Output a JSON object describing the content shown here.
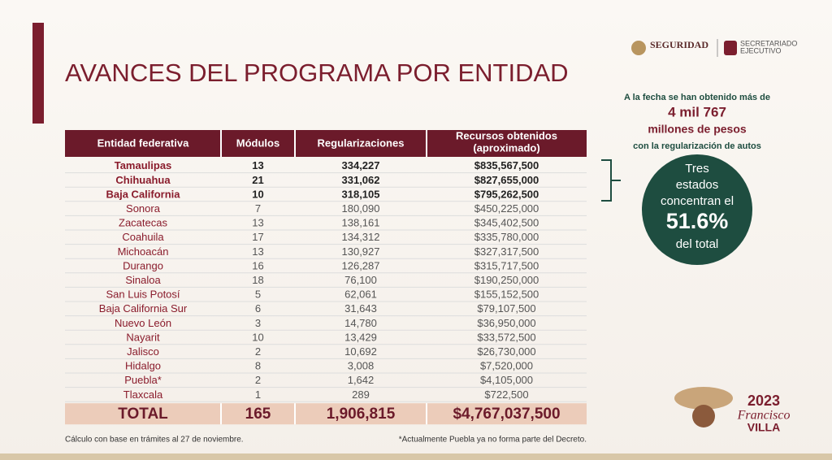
{
  "header": {
    "title": "AVANCES DEL PROGRAMA POR ENTIDAD",
    "logo_left": "SEGURIDAD",
    "logo_right": [
      "SECRETARIADO",
      "EJECUTIVO"
    ]
  },
  "table": {
    "columns": [
      "Entidad federativa",
      "Módulos",
      "Regularizaciones",
      [
        "Recursos obtenidos",
        "(aproximado)"
      ]
    ],
    "rows": [
      [
        "Tamaulipas",
        "13",
        "334,227",
        "$835,567,500"
      ],
      [
        "Chihuahua",
        "21",
        "331,062",
        "$827,655,000"
      ],
      [
        "Baja California",
        "10",
        "318,105",
        "$795,262,500"
      ],
      [
        "Sonora",
        "7",
        "180,090",
        "$450,225,000"
      ],
      [
        "Zacatecas",
        "13",
        "138,161",
        "$345,402,500"
      ],
      [
        "Coahuila",
        "17",
        "134,312",
        "$335,780,000"
      ],
      [
        "Michoacán",
        "13",
        "130,927",
        "$327,317,500"
      ],
      [
        "Durango",
        "16",
        "126,287",
        "$315,717,500"
      ],
      [
        "Sinaloa",
        "18",
        "76,100",
        "$190,250,000"
      ],
      [
        "San Luis Potosí",
        "5",
        "62,061",
        "$155,152,500"
      ],
      [
        "Baja California Sur",
        "6",
        "31,643",
        "$79,107,500"
      ],
      [
        "Nuevo León",
        "3",
        "14,780",
        "$36,950,000"
      ],
      [
        "Nayarit",
        "10",
        "13,429",
        "$33,572,500"
      ],
      [
        "Jalisco",
        "2",
        "10,692",
        "$26,730,000"
      ],
      [
        "Hidalgo",
        "8",
        "3,008",
        "$7,520,000"
      ],
      [
        "Puebla*",
        "2",
        "1,642",
        "$4,105,000"
      ],
      [
        "Tlaxcala",
        "1",
        "289",
        "$722,500"
      ]
    ],
    "total": [
      "TOTAL",
      "165",
      "1,906,815",
      "$4,767,037,500"
    ]
  },
  "side_note": {
    "lines": [
      "A la fecha se han obtenido más de",
      "4 mil 767",
      "millones de pesos",
      "con la regularización de autos"
    ],
    "circle": [
      "Tres",
      "estados",
      "concentran el",
      "51.6%",
      "del total"
    ]
  },
  "badge": {
    "year": "2023",
    "name": [
      "Francisco",
      "VILLA"
    ]
  },
  "footnotes": [
    "Cálculo con base en trámites al 27 de noviembre.",
    "*Actualmente Puebla ya no forma parte del Decreto."
  ]
}
